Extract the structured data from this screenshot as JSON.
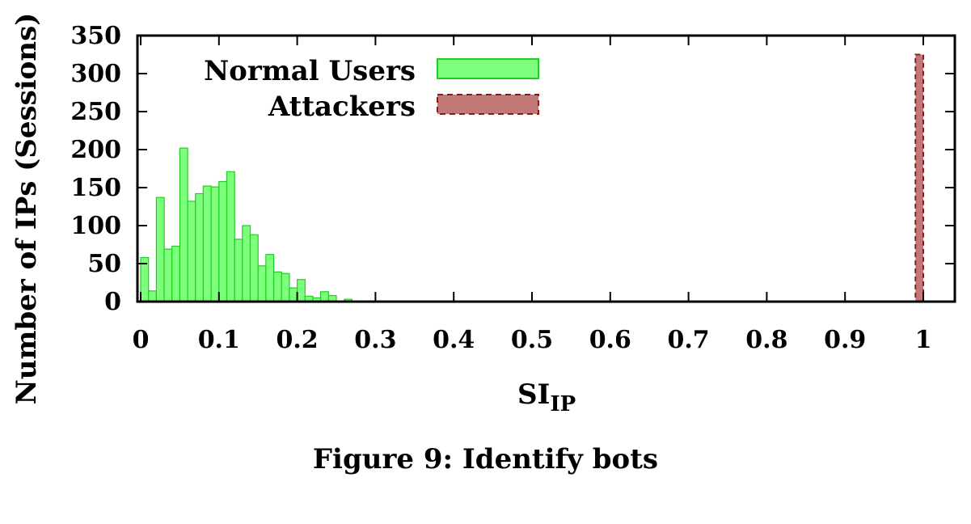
{
  "caption": "Figure 9: Identify bots",
  "chart_data": {
    "type": "bar",
    "xlabel_main": "SI",
    "xlabel_sub": "IP",
    "ylabel": "Number of IPs (Sessions)",
    "xlim": [
      0,
      1
    ],
    "ylim": [
      0,
      350
    ],
    "xticks": [
      "0",
      "0.1",
      "0.2",
      "0.3",
      "0.4",
      "0.5",
      "0.6",
      "0.7",
      "0.8",
      "0.9",
      "1"
    ],
    "yticks": [
      "0",
      "50",
      "100",
      "150",
      "200",
      "250",
      "300",
      "350"
    ],
    "bin_width": 0.01,
    "legend_position": "top-left",
    "grid": false,
    "series": [
      {
        "name": "Normal Users",
        "color": "#7dff7d",
        "edge_color": "#22cc22",
        "bins": [
          {
            "x": 0.0,
            "value": 58
          },
          {
            "x": 0.01,
            "value": 14
          },
          {
            "x": 0.02,
            "value": 137
          },
          {
            "x": 0.03,
            "value": 69
          },
          {
            "x": 0.04,
            "value": 73
          },
          {
            "x": 0.05,
            "value": 202
          },
          {
            "x": 0.06,
            "value": 132
          },
          {
            "x": 0.07,
            "value": 142
          },
          {
            "x": 0.08,
            "value": 152
          },
          {
            "x": 0.09,
            "value": 151
          },
          {
            "x": 0.1,
            "value": 158
          },
          {
            "x": 0.11,
            "value": 171
          },
          {
            "x": 0.12,
            "value": 82
          },
          {
            "x": 0.13,
            "value": 100
          },
          {
            "x": 0.14,
            "value": 88
          },
          {
            "x": 0.15,
            "value": 47
          },
          {
            "x": 0.16,
            "value": 62
          },
          {
            "x": 0.17,
            "value": 39
          },
          {
            "x": 0.18,
            "value": 37
          },
          {
            "x": 0.19,
            "value": 18
          },
          {
            "x": 0.2,
            "value": 29
          },
          {
            "x": 0.21,
            "value": 7
          },
          {
            "x": 0.22,
            "value": 5
          },
          {
            "x": 0.23,
            "value": 13
          },
          {
            "x": 0.24,
            "value": 8
          },
          {
            "x": 0.25,
            "value": 1
          },
          {
            "x": 0.26,
            "value": 3
          },
          {
            "x": 0.27,
            "value": 1
          },
          {
            "x": 0.29,
            "value": 1
          },
          {
            "x": 0.34,
            "value": 1
          }
        ]
      },
      {
        "name": "Attackers",
        "color": "#c07878",
        "edge_color": "#8b1a1a",
        "bins": [
          {
            "x": 0.99,
            "value": 325
          }
        ]
      }
    ]
  }
}
